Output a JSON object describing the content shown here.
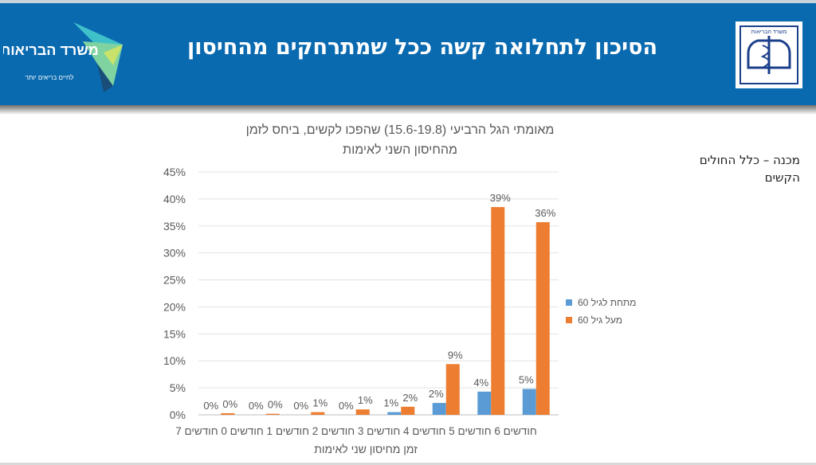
{
  "slide": {
    "title": "הסיכון לתחלואה קשה ככל שמתרחקים מהחיסון",
    "side_note": "מכנה – כלל החולים הקשים",
    "logo_left_text": "משרד הבריאות",
    "logo_left_tagline": "לחיים בריאים יותר",
    "logo_right_text": "משרד הבריאות"
  },
  "colors": {
    "header": "#0a6ab0",
    "under60": "#5b9bd5",
    "over60": "#ed7d31"
  },
  "chart_data": {
    "type": "bar",
    "title_line1": "מאומתי הגל הרביעי (15.6-19.8) שהפכו לקשים, ביחס לזמן",
    "title_line2": "מהחיסון השני לאימות",
    "xlabel": "זמן מחיסון שני לאימות",
    "ylabel": "",
    "ylim": [
      0,
      45
    ],
    "yticks": [
      "0%",
      "5%",
      "10%",
      "15%",
      "20%",
      "25%",
      "30%",
      "35%",
      "40%",
      "45%"
    ],
    "categories": [
      "0 חודשים",
      "1 חודשים",
      "2 חודשים",
      "3 חודשים",
      "4 חודשים",
      "5 חודשים",
      "6 חודשים",
      "7 חודשים"
    ],
    "series": [
      {
        "name": "מתחת לגיל 60",
        "values": [
          0,
          0,
          0,
          0,
          0.5,
          2.2,
          4.3,
          4.8
        ],
        "labels": [
          "0%",
          "0%",
          "0%",
          "0%",
          "1%",
          "2%",
          "4%",
          "5%"
        ]
      },
      {
        "name": "מעל גיל 60",
        "values": [
          0.3,
          0.2,
          0.5,
          1.0,
          1.5,
          9.4,
          38.5,
          35.7
        ],
        "labels": [
          "0%",
          "0%",
          "1%",
          "1%",
          "2%",
          "9%",
          "39%",
          "36%"
        ]
      }
    ],
    "legend_position": "right",
    "grid": true
  }
}
